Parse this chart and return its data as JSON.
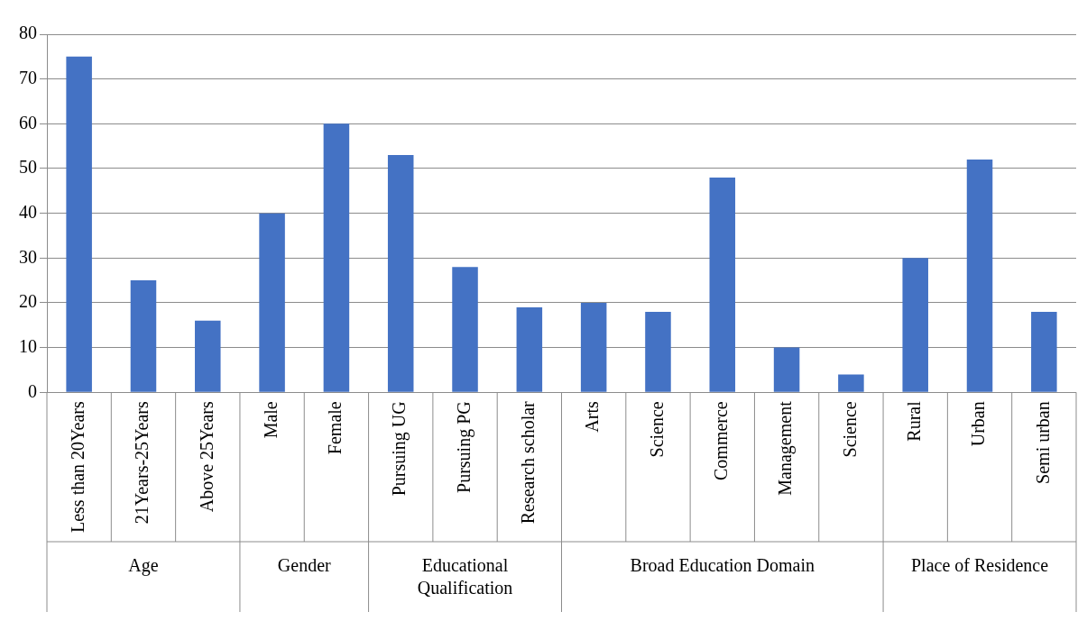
{
  "chart_data": {
    "type": "bar",
    "categories": [
      "Less than 20Years",
      "21Years-25Years",
      "Above 25Years",
      "Male",
      "Female",
      "Pursuing UG",
      "Pursuing PG",
      "Research scholar",
      "Arts",
      "Science",
      "Commerce",
      "Management",
      "Science",
      "Rural",
      "Urban",
      "Semi urban"
    ],
    "values": [
      75,
      25,
      16,
      40,
      60,
      53,
      28,
      19,
      20,
      18,
      48,
      10,
      4,
      30,
      52,
      18
    ],
    "color": "#4472c4",
    "ylim": [
      0,
      80
    ],
    "yticks": [
      0,
      10,
      20,
      30,
      40,
      50,
      60,
      70,
      80
    ],
    "grid": "y",
    "annotations": [
      "Age",
      "Gender",
      "Educational Qualification",
      "Broad Education Domain",
      "Place of Residence"
    ]
  }
}
